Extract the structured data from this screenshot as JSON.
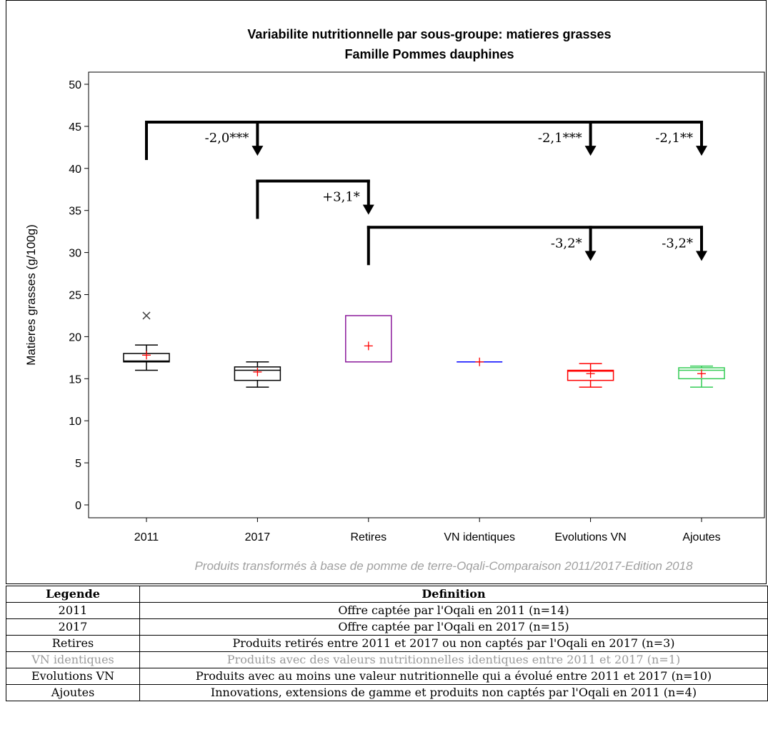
{
  "chart_data": {
    "type": "box",
    "title": "Variabilite nutritionnelle par sous-groupe: matieres grasses",
    "subtitle": "Famille Pommes dauphines",
    "ylabel": "Matieres grasses (g/100g)",
    "xlabel": "",
    "ylim": [
      0,
      50
    ],
    "yticks": [
      0,
      5,
      10,
      15,
      20,
      25,
      30,
      35,
      40,
      45,
      50
    ],
    "grid": false,
    "footnote": "Produits transformés à base de pomme de terre-Oqali-Comparaison 2011/2017-Edition 2018",
    "categories": [
      "2011",
      "2017",
      "Retires",
      "VN identiques",
      "Evolutions VN",
      "Ajoutes"
    ],
    "boxes": [
      {
        "category": "2011",
        "min": 16,
        "q1": 17,
        "median": 17.1,
        "q3": 18,
        "max": 19,
        "mean": 17.8,
        "outliers": [
          22.5
        ],
        "color": "#000000"
      },
      {
        "category": "2017",
        "min": 14,
        "q1": 14.8,
        "median": 16,
        "q3": 16.4,
        "max": 17,
        "mean": 15.8,
        "outliers": [],
        "color": "#000000"
      },
      {
        "category": "Retires",
        "min": 17,
        "q1": 17,
        "median": 17,
        "q3": 22.5,
        "max": 22.5,
        "mean": 18.9,
        "outliers": [],
        "color": "#8b1a9b"
      },
      {
        "category": "VN identiques",
        "min": 17,
        "q1": 17,
        "median": 17,
        "q3": 17,
        "max": 17,
        "mean": 17,
        "outliers": [],
        "color": "#0000ff"
      },
      {
        "category": "Evolutions VN",
        "min": 14,
        "q1": 14.8,
        "median": 15.9,
        "q3": 16,
        "max": 16.8,
        "mean": 15.6,
        "outliers": [],
        "color": "#ff0000"
      },
      {
        "category": "Ajoutes",
        "min": 14,
        "q1": 15,
        "median": 16,
        "q3": 16.3,
        "max": 16.5,
        "mean": 15.6,
        "outliers": [],
        "color": "#33cc55"
      }
    ],
    "mean_marker_color": "#ff0000",
    "comparisons": [
      {
        "from": "2011",
        "to": [
          "2017",
          "Evolutions VN",
          "Ajoutes"
        ],
        "bracket_y": 45.5,
        "start_y": 41.0,
        "end_y": 41.5,
        "labels": [
          "-2,0***",
          "-2,1***",
          "-2,1**"
        ]
      },
      {
        "from": "2017",
        "to": [
          "Retires"
        ],
        "bracket_y": 38.5,
        "start_y": 34.0,
        "end_y": 34.5,
        "labels": [
          "+3,1*"
        ]
      },
      {
        "from": "Retires",
        "to": [
          "Evolutions VN",
          "Ajoutes"
        ],
        "bracket_y": 33.0,
        "start_y": 28.5,
        "end_y": 29.0,
        "labels": [
          "-3,2*",
          "-3,2*"
        ]
      }
    ]
  },
  "legend_table": {
    "headers": [
      "Legende",
      "Definition"
    ],
    "rows": [
      {
        "legende": "2011",
        "definition": "Offre captée par l'Oqali en 2011 (n=14)"
      },
      {
        "legende": "2017",
        "definition": "Offre captée par l'Oqali en 2017 (n=15)"
      },
      {
        "legende": "Retires",
        "definition": "Produits retirés entre 2011 et 2017 ou non captés par l'Oqali en 2017 (n=3)"
      },
      {
        "legende": "VN identiques",
        "definition": "Produits avec des valeurs nutritionnelles identiques entre 2011 et 2017 (n=1)"
      },
      {
        "legende": "Evolutions VN",
        "definition": "Produits avec au moins une valeur nutritionnelle qui a évolué entre 2011 et 2017 (n=10)"
      },
      {
        "legende": "Ajoutes",
        "definition": "Innovations, extensions de gamme et produits non captés par l'Oqali en 2011 (n=4)"
      }
    ]
  }
}
